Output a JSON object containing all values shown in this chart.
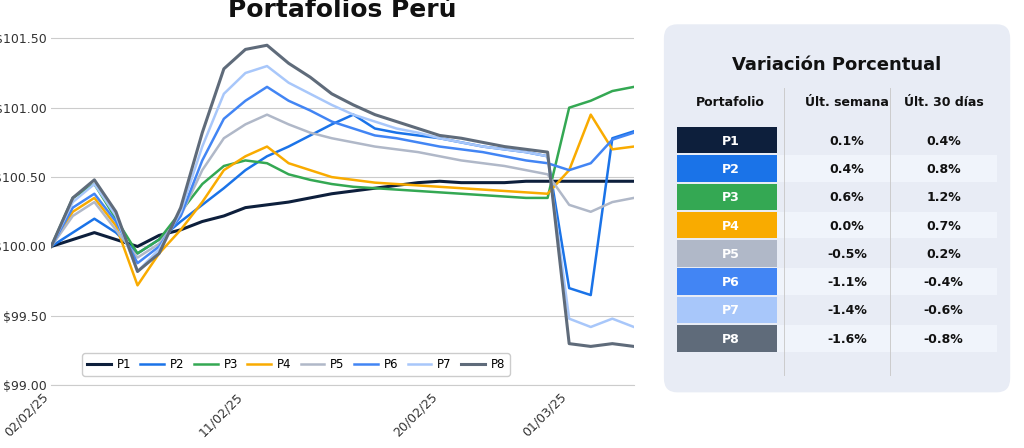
{
  "title": "Portafolios Perú",
  "ylim": [
    99.0,
    101.55
  ],
  "yticks": [
    99.0,
    99.5,
    100.0,
    100.5,
    101.0,
    101.5
  ],
  "ytick_labels": [
    "$99.00",
    "$99.50",
    "$100.00",
    "$100.50",
    "$101.00",
    "$101.50"
  ],
  "xtick_labels": [
    "02/02/25",
    "11/02/25",
    "20/02/25",
    "01/03/25"
  ],
  "series": {
    "P1": {
      "color": "#0d1f3c",
      "linewidth": 2.2,
      "values": [
        100.0,
        100.05,
        100.1,
        100.05,
        100.0,
        100.08,
        100.12,
        100.18,
        100.22,
        100.28,
        100.3,
        100.32,
        100.35,
        100.38,
        100.4,
        100.42,
        100.44,
        100.46,
        100.47,
        100.46,
        100.46,
        100.46,
        100.47,
        100.47,
        100.47,
        100.47,
        100.47,
        100.47
      ]
    },
    "P2": {
      "color": "#1a73e8",
      "linewidth": 1.8,
      "values": [
        100.0,
        100.1,
        100.2,
        100.1,
        99.95,
        100.05,
        100.18,
        100.3,
        100.42,
        100.55,
        100.65,
        100.72,
        100.8,
        100.88,
        100.95,
        100.85,
        100.82,
        100.8,
        100.78,
        100.75,
        100.72,
        100.7,
        100.68,
        100.65,
        99.7,
        99.65,
        100.78,
        100.83
      ]
    },
    "P3": {
      "color": "#34a853",
      "linewidth": 1.8,
      "values": [
        100.0,
        100.35,
        100.45,
        100.2,
        99.95,
        100.05,
        100.25,
        100.45,
        100.58,
        100.62,
        100.6,
        100.52,
        100.48,
        100.45,
        100.43,
        100.42,
        100.41,
        100.4,
        100.39,
        100.38,
        100.37,
        100.36,
        100.35,
        100.35,
        101.0,
        101.05,
        101.12,
        101.15
      ]
    },
    "P4": {
      "color": "#f9ab00",
      "linewidth": 1.8,
      "values": [
        100.0,
        100.25,
        100.35,
        100.15,
        99.72,
        99.95,
        100.12,
        100.32,
        100.55,
        100.65,
        100.72,
        100.6,
        100.55,
        100.5,
        100.48,
        100.46,
        100.45,
        100.44,
        100.43,
        100.42,
        100.41,
        100.4,
        100.39,
        100.38,
        100.55,
        100.95,
        100.7,
        100.72
      ]
    },
    "P5": {
      "color": "#b0b8c8",
      "linewidth": 1.8,
      "values": [
        100.0,
        100.22,
        100.32,
        100.12,
        99.92,
        100.02,
        100.22,
        100.55,
        100.78,
        100.88,
        100.95,
        100.88,
        100.82,
        100.78,
        100.75,
        100.72,
        100.7,
        100.68,
        100.65,
        100.62,
        100.6,
        100.58,
        100.55,
        100.52,
        100.3,
        100.25,
        100.32,
        100.35
      ]
    },
    "P6": {
      "color": "#4285f4",
      "linewidth": 1.8,
      "values": [
        100.0,
        100.28,
        100.38,
        100.18,
        99.88,
        100.0,
        100.22,
        100.62,
        100.92,
        101.05,
        101.15,
        101.05,
        100.98,
        100.9,
        100.85,
        100.8,
        100.78,
        100.75,
        100.72,
        100.7,
        100.68,
        100.65,
        100.62,
        100.6,
        100.55,
        100.6,
        100.77,
        100.82
      ]
    },
    "P7": {
      "color": "#a8c7fa",
      "linewidth": 1.8,
      "values": [
        100.0,
        100.32,
        100.45,
        100.22,
        99.82,
        99.98,
        100.25,
        100.72,
        101.1,
        101.25,
        101.3,
        101.18,
        101.1,
        101.02,
        100.95,
        100.9,
        100.85,
        100.82,
        100.78,
        100.75,
        100.72,
        100.7,
        100.68,
        100.65,
        99.48,
        99.42,
        99.48,
        99.42
      ]
    },
    "P8": {
      "color": "#5f6b7a",
      "linewidth": 2.2,
      "values": [
        100.0,
        100.35,
        100.48,
        100.25,
        99.82,
        99.95,
        100.28,
        100.82,
        101.28,
        101.42,
        101.45,
        101.32,
        101.22,
        101.1,
        101.02,
        100.95,
        100.9,
        100.85,
        100.8,
        100.78,
        100.75,
        100.72,
        100.7,
        100.68,
        99.3,
        99.28,
        99.3,
        99.28
      ]
    }
  },
  "x_positions": [
    0,
    1,
    2,
    3,
    4,
    5,
    6,
    7,
    8,
    9,
    10,
    11,
    12,
    13,
    14,
    15,
    16,
    17,
    18,
    19,
    20,
    21,
    22,
    23,
    24,
    25,
    26,
    27
  ],
  "xtick_positions": [
    0,
    9,
    18,
    24
  ],
  "legend_order": [
    "P1",
    "P2",
    "P3",
    "P4",
    "P5",
    "P6",
    "P7",
    "P8"
  ],
  "table_title": "Variación Porcentual",
  "table_header": [
    "Portafolio",
    "Últ. semana",
    "Últ. 30 días"
  ],
  "table_data": [
    [
      "P1",
      "0.1%",
      "0.4%"
    ],
    [
      "P2",
      "0.4%",
      "0.8%"
    ],
    [
      "P3",
      "0.6%",
      "1.2%"
    ],
    [
      "P4",
      "0.0%",
      "0.7%"
    ],
    [
      "P5",
      "-0.5%",
      "0.2%"
    ],
    [
      "P6",
      "-1.1%",
      "-0.4%"
    ],
    [
      "P7",
      "-1.4%",
      "-0.6%"
    ],
    [
      "P8",
      "-1.6%",
      "-0.8%"
    ]
  ],
  "table_row_colors": [
    "#0d1f3c",
    "#1a73e8",
    "#34a853",
    "#f9ab00",
    "#b0b8c8",
    "#4285f4",
    "#a8c7fa",
    "#5f6b7a"
  ],
  "table_bg": "#e8ecf5",
  "table_alt_bg": "#f0f4fb",
  "background_color": "#ffffff"
}
